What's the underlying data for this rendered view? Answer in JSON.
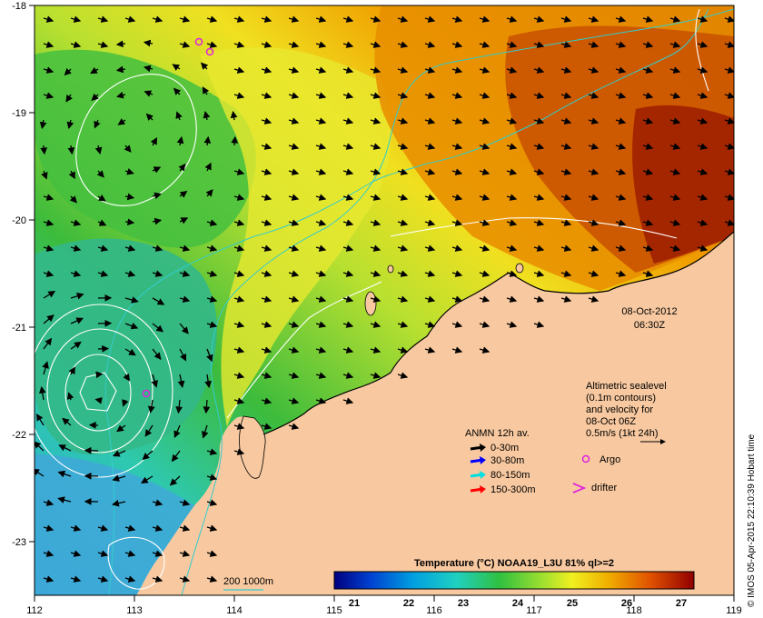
{
  "map": {
    "lon_ticks": [
      "112",
      "113",
      "114",
      "115",
      "116",
      "117",
      "118",
      "119"
    ],
    "lat_ticks": [
      "-18",
      "-19",
      "-20",
      "-21",
      "-22",
      "-23"
    ],
    "colors": {
      "land": "#f8c9a0",
      "sst_cool": "#2ec8c0",
      "sst_mid": "#33bb33",
      "sst_warm": "#e88a00",
      "sst_hot": "#a02000",
      "contour": "#ffffff",
      "isobath": "#33cccc",
      "argo": "#e020e0"
    }
  },
  "timestamp": {
    "date": "08-Oct-2012",
    "time": "06:30Z"
  },
  "altimetry_note": {
    "line1": "Altimetric sealevel",
    "line2": "(0.1m contours)",
    "line3": "and velocity for",
    "line4": "08-Oct 06Z",
    "line5": "0.5m/s (1kt 24h)"
  },
  "legend": {
    "title": "ANMN 12h av.",
    "items": [
      {
        "label": "0-30m",
        "color": "#000000"
      },
      {
        "label": "30-80m",
        "color": "#0000ff"
      },
      {
        "label": "80-150m",
        "color": "#00e0e0"
      },
      {
        "label": "150-300m",
        "color": "#ff0000"
      }
    ],
    "argo_label": "Argo",
    "drifter_label": "drifter"
  },
  "bathymetry_label": "200  1000m",
  "colorbar": {
    "title": "Temperature (°C) NOAA19_L3U 81% ql>=2",
    "ticks": [
      "21",
      "22",
      "23",
      "24",
      "25",
      "26",
      "27"
    ],
    "min": 20.6,
    "max": 27.2
  },
  "credit": "© IMOS 05-Apr-2015 22:10:39 Hobart time"
}
